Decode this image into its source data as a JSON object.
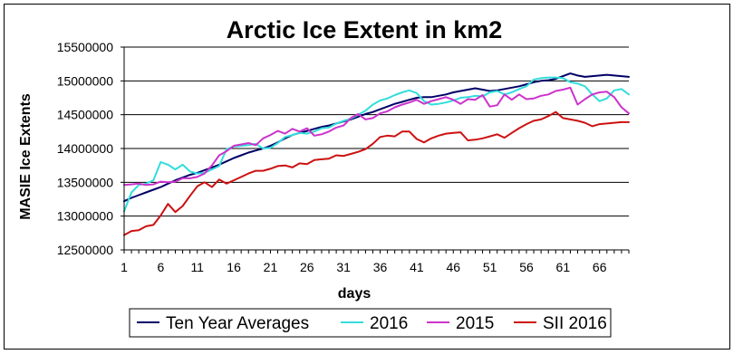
{
  "chart_data": {
    "type": "line",
    "title": "Arctic Ice Extent in km2",
    "xlabel": "days",
    "ylabel": "MASIE Ice Extents",
    "xlim": [
      1,
      70
    ],
    "ylim": [
      12500000,
      15500000
    ],
    "x_ticks": [
      1,
      6,
      11,
      16,
      21,
      26,
      31,
      36,
      41,
      46,
      51,
      56,
      61,
      66
    ],
    "y_ticks": [
      12500000,
      13000000,
      13500000,
      14000000,
      14500000,
      15000000,
      15500000
    ],
    "y_tick_labels": [
      "12500000",
      "13000000",
      "13500000",
      "14000000",
      "14500000",
      "15000000",
      "15500000"
    ],
    "grid": "horizontal",
    "legend_position": "bottom",
    "series": [
      {
        "name": "Ten Year Averages",
        "color": "#000066",
        "values": [
          13220000,
          13270000,
          13310000,
          13350000,
          13390000,
          13430000,
          13480000,
          13530000,
          13570000,
          13610000,
          13640000,
          13680000,
          13720000,
          13760000,
          13810000,
          13860000,
          13900000,
          13940000,
          13970000,
          14000000,
          14040000,
          14090000,
          14150000,
          14200000,
          14230000,
          14260000,
          14290000,
          14320000,
          14340000,
          14370000,
          14400000,
          14430000,
          14470000,
          14510000,
          14540000,
          14580000,
          14620000,
          14660000,
          14690000,
          14720000,
          14750000,
          14760000,
          14760000,
          14780000,
          14800000,
          14830000,
          14850000,
          14870000,
          14890000,
          14870000,
          14850000,
          14860000,
          14880000,
          14900000,
          14920000,
          14950000,
          14980000,
          15000000,
          15010000,
          15030000,
          15070000,
          15110000,
          15080000,
          15060000,
          15070000,
          15080000,
          15090000,
          15080000,
          15070000,
          15060000
        ]
      },
      {
        "name": "2016",
        "color": "#33dddd",
        "values": [
          13070000,
          13350000,
          13460000,
          13480000,
          13530000,
          13800000,
          13760000,
          13690000,
          13760000,
          13660000,
          13630000,
          13640000,
          13690000,
          13740000,
          13990000,
          14030000,
          14040000,
          14050000,
          14070000,
          14000000,
          14010000,
          14080000,
          14170000,
          14200000,
          14230000,
          14220000,
          14250000,
          14300000,
          14310000,
          14370000,
          14410000,
          14440000,
          14500000,
          14560000,
          14650000,
          14710000,
          14740000,
          14790000,
          14830000,
          14860000,
          14820000,
          14700000,
          14650000,
          14660000,
          14680000,
          14710000,
          14750000,
          14760000,
          14780000,
          14770000,
          14830000,
          14850000,
          14800000,
          14830000,
          14880000,
          14920000,
          15020000,
          15040000,
          15050000,
          15050000,
          15040000,
          14980000,
          14960000,
          14920000,
          14800000,
          14700000,
          14740000,
          14860000,
          14880000,
          14800000
        ]
      },
      {
        "name": "2015",
        "color": "#cc33cc",
        "values": [
          13460000,
          13470000,
          13480000,
          13460000,
          13470000,
          13510000,
          13500000,
          13510000,
          13560000,
          13560000,
          13580000,
          13630000,
          13750000,
          13900000,
          13960000,
          14040000,
          14060000,
          14080000,
          14050000,
          14150000,
          14200000,
          14260000,
          14220000,
          14290000,
          14250000,
          14300000,
          14190000,
          14210000,
          14250000,
          14310000,
          14340000,
          14450000,
          14510000,
          14430000,
          14450000,
          14520000,
          14550000,
          14610000,
          14650000,
          14680000,
          14720000,
          14660000,
          14700000,
          14730000,
          14760000,
          14720000,
          14660000,
          14730000,
          14720000,
          14790000,
          14620000,
          14640000,
          14800000,
          14720000,
          14800000,
          14730000,
          14740000,
          14780000,
          14800000,
          14850000,
          14870000,
          14900000,
          14650000,
          14730000,
          14800000,
          14830000,
          14840000,
          14760000,
          14610000,
          14520000
        ]
      },
      {
        "name": "SII 2016",
        "color": "#cc1111",
        "values": [
          12720000,
          12780000,
          12790000,
          12850000,
          12870000,
          13010000,
          13180000,
          13060000,
          13150000,
          13300000,
          13440000,
          13500000,
          13430000,
          13540000,
          13480000,
          13530000,
          13580000,
          13630000,
          13670000,
          13670000,
          13700000,
          13740000,
          13750000,
          13720000,
          13780000,
          13770000,
          13830000,
          13840000,
          13850000,
          13900000,
          13890000,
          13920000,
          13950000,
          13990000,
          14070000,
          14170000,
          14190000,
          14180000,
          14250000,
          14250000,
          14140000,
          14090000,
          14150000,
          14190000,
          14220000,
          14230000,
          14240000,
          14120000,
          14130000,
          14150000,
          14180000,
          14210000,
          14160000,
          14230000,
          14300000,
          14360000,
          14410000,
          14430000,
          14480000,
          14540000,
          14450000,
          14430000,
          14410000,
          14380000,
          14330000,
          14360000,
          14370000,
          14380000,
          14390000,
          14390000
        ]
      }
    ]
  }
}
